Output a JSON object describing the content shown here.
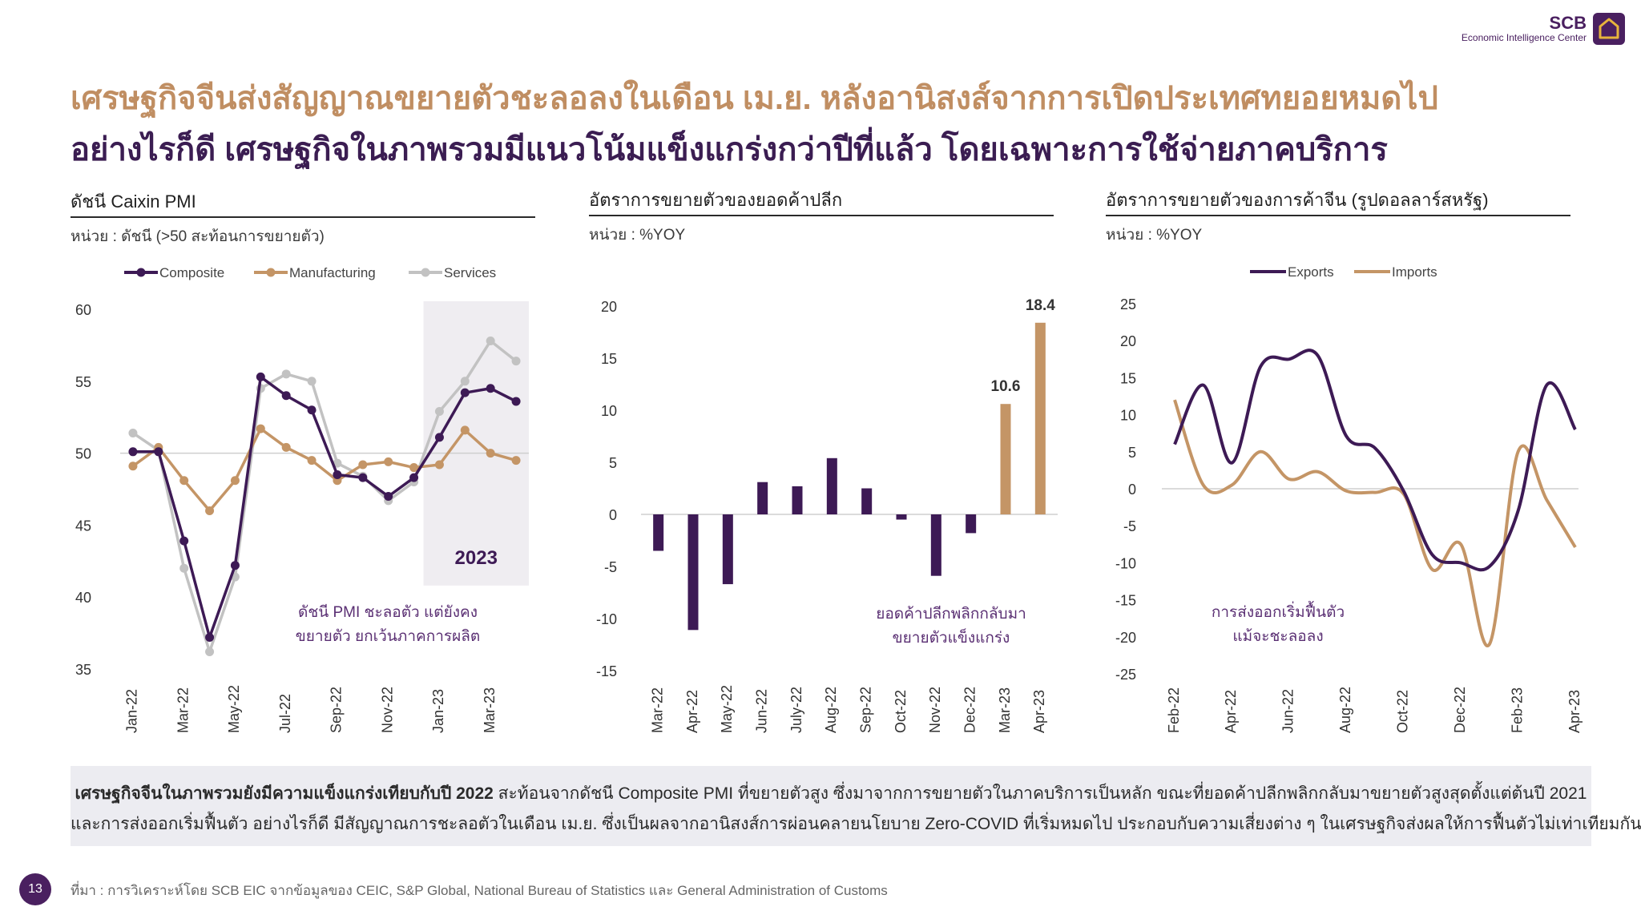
{
  "logo": {
    "name": "SCB",
    "subtitle": "Economic Intelligence Center"
  },
  "headline_1": "เศรษฐกิจจีนส่งสัญญาณขยายตัวชะลอลงในเดือน เม.ย. หลังอานิสงส์จากการเปิดประเทศทยอยหมดไป",
  "headline_2": "อย่างไรก็ดี เศรษฐกิจในภาพรวมมีแนวโน้มแข็งแกร่งกว่าปีที่แล้ว โดยเฉพาะการใช้จ่ายภาคบริการ",
  "colors": {
    "purple": "#3d1a55",
    "tan": "#c49566",
    "grey": "#c2c2c2",
    "headline_tan": "#c08e62"
  },
  "summary": {
    "line1_bold": "เศรษฐกิจจีนในภาพรวมยังมีความแข็งแกร่งเทียบกับปี 2022",
    "line1_rest": " สะท้อนจากดัชนี Composite PMI ที่ขยายตัวสูง ซึ่งมาจากการขยายตัวในภาคบริการเป็นหลัก ขณะที่ยอดค้าปลีกพลิกกลับมาขยายตัวสูงสุดตั้งแต่ต้นปี 2021",
    "line2": "และการส่งออกเริ่มฟื้นตัว อย่างไรก็ดี มีสัญญาณการชะลอตัวในเดือน เม.ย. ซึ่งเป็นผลจากอานิสงส์การผ่อนคลายนโยบาย Zero-COVID ที่เริ่มหมดไป ประกอบกับความเสี่ยงต่าง ๆ ในเศรษฐกิจส่งผลให้การฟื้นตัวไม่เท่าเทียมกัน"
  },
  "page_number": "13",
  "source": "ที่มา : การวิเคราะห์โดย SCB EIC จากข้อมูลของ CEIC, S&P Global, National Bureau of Statistics และ General Administration of Customs",
  "chart_data": [
    {
      "type": "line",
      "title": "ดัชนี Caixin PMI",
      "unit": "หน่วย : ดัชนี (>50 สะท้อนการขยายตัว)",
      "x": [
        "Jan-22",
        "Feb-22",
        "Mar-22",
        "Apr-22",
        "May-22",
        "Jun-22",
        "Jul-22",
        "Aug-22",
        "Sep-22",
        "Oct-22",
        "Nov-22",
        "Dec-22",
        "Jan-23",
        "Feb-23",
        "Mar-23",
        "Apr-23"
      ],
      "x_tick_labels": [
        "Jan-22",
        "Mar-22",
        "May-22",
        "Jul-22",
        "Sep-22",
        "Nov-22",
        "Jan-23",
        "Mar-23"
      ],
      "ylim": [
        35,
        60
      ],
      "yticks": [
        35,
        40,
        45,
        50,
        55,
        60
      ],
      "reference_line": 50,
      "shaded_region": {
        "from": "Dec-22",
        "to": "Apr-23",
        "label": "2023"
      },
      "legend": "top",
      "series": [
        {
          "name": "Composite",
          "color": "#3d1a55",
          "values": [
            50.1,
            50.1,
            43.9,
            37.2,
            42.2,
            55.3,
            54.0,
            53.0,
            48.5,
            48.3,
            47.0,
            48.3,
            51.1,
            54.2,
            54.5,
            53.6
          ]
        },
        {
          "name": "Manufacturing",
          "color": "#c49566",
          "values": [
            49.1,
            50.4,
            48.1,
            46.0,
            48.1,
            51.7,
            50.4,
            49.5,
            48.1,
            49.2,
            49.4,
            49.0,
            49.2,
            51.6,
            50.0,
            49.5
          ]
        },
        {
          "name": "Services",
          "color": "#c2c2c2",
          "values": [
            51.4,
            50.2,
            42.0,
            36.2,
            41.4,
            54.5,
            55.5,
            55.0,
            49.3,
            48.4,
            46.7,
            48.0,
            52.9,
            55.0,
            57.8,
            56.4
          ]
        }
      ],
      "annotation": [
        "ดัชนี PMI ชะลอตัว แต่ยังคง",
        "ขยายตัว ยกเว้นภาคการผลิต"
      ]
    },
    {
      "type": "bar",
      "title": "อัตราการขยายตัวของยอดค้าปลีก",
      "unit": "หน่วย : %YOY",
      "categories": [
        "Mar-22",
        "Apr-22",
        "May-22",
        "Jun-22",
        "July-22",
        "Aug-22",
        "Sep-22",
        "Oct-22",
        "Nov-22",
        "Dec-22",
        "Mar-23",
        "Apr-23"
      ],
      "values": [
        -3.5,
        -11.1,
        -6.7,
        3.1,
        2.7,
        5.4,
        2.5,
        -0.5,
        -5.9,
        -1.8,
        10.6,
        18.4
      ],
      "bar_colors": [
        "#3d1a55",
        "#3d1a55",
        "#3d1a55",
        "#3d1a55",
        "#3d1a55",
        "#3d1a55",
        "#3d1a55",
        "#3d1a55",
        "#3d1a55",
        "#3d1a55",
        "#c49566",
        "#c49566"
      ],
      "data_labels": {
        "Mar-23": "10.6",
        "Apr-23": "18.4"
      },
      "ylim": [
        -15,
        20
      ],
      "yticks": [
        -15,
        -10,
        -5,
        0,
        5,
        10,
        15,
        20
      ],
      "annotation": [
        "ยอดค้าปลีกพลิกกลับมา",
        "ขยายตัวแข็งแกร่ง"
      ]
    },
    {
      "type": "line",
      "title": "อัตราการขยายตัวของการค้าจีน (รูปดอลลาร์สหรัฐ)",
      "unit": "หน่วย : %YOY",
      "x": [
        "Feb-22",
        "Mar-22",
        "Apr-22",
        "May-22",
        "Jun-22",
        "Jul-22",
        "Aug-22",
        "Sep-22",
        "Oct-22",
        "Nov-22",
        "Dec-22",
        "Jan-23",
        "Feb-23",
        "Mar-23",
        "Apr-23"
      ],
      "x_tick_labels": [
        "Feb-22",
        "Apr-22",
        "Jun-22",
        "Aug-22",
        "Oct-22",
        "Dec-22",
        "Feb-23",
        "Apr-23"
      ],
      "ylim": [
        -25,
        25
      ],
      "yticks": [
        -25,
        -20,
        -15,
        -10,
        -5,
        0,
        5,
        10,
        15,
        20,
        25
      ],
      "legend": "top",
      "series": [
        {
          "name": "Exports",
          "color": "#3d1a55",
          "values": [
            6.0,
            14.0,
            3.5,
            16.5,
            17.5,
            18.0,
            7.1,
            5.5,
            -0.3,
            -8.9,
            -10.0,
            -10.5,
            -3.0,
            14.0,
            8.0
          ]
        },
        {
          "name": "Imports",
          "color": "#c49566",
          "values": [
            12.0,
            0.5,
            0.5,
            5.0,
            1.3,
            2.3,
            -0.3,
            -0.5,
            -0.7,
            -10.9,
            -7.5,
            -21.0,
            5.0,
            -1.5,
            -7.9
          ]
        }
      ],
      "annotation": [
        "การส่งออกเริ่มฟื้นตัว",
        "แม้จะชะลอลง"
      ]
    }
  ]
}
